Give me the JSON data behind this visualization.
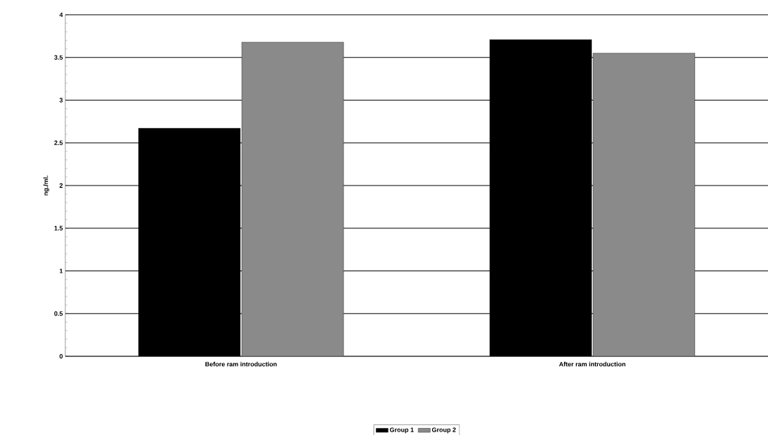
{
  "chart_data": {
    "type": "bar",
    "ylabel": "ng./ml.",
    "categories": [
      "Before ram introduction",
      "After ram introduction"
    ],
    "series": [
      {
        "name": "Group 1",
        "color": "#000000",
        "values": [
          2.67,
          3.71
        ]
      },
      {
        "name": "Group 2",
        "color": "#8a8a8a",
        "values": [
          3.68,
          3.55
        ]
      }
    ],
    "ylim": [
      0,
      4
    ],
    "yticks": [
      0,
      0.5,
      1,
      1.5,
      2,
      2.5,
      3,
      3.5,
      4
    ],
    "grid": "y",
    "legend": "bottom"
  }
}
